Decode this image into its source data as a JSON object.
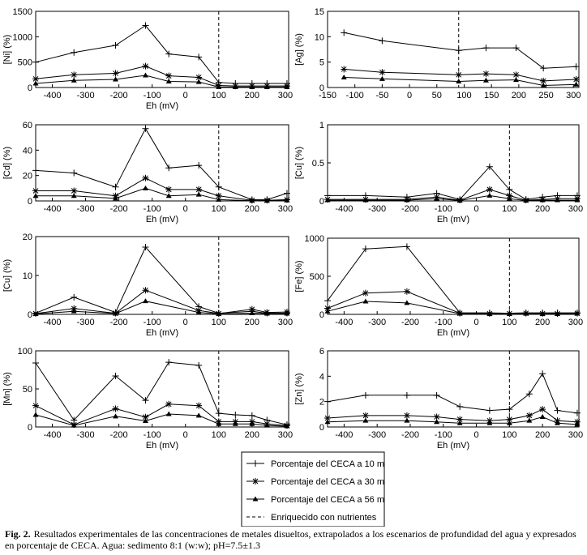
{
  "chart_data": [
    {
      "id": "ni",
      "type": "line",
      "ylabel": "[Ni] (%)",
      "xlabel": "Eh (mV)",
      "xlim": [
        -450,
        310
      ],
      "ylim": [
        0,
        1500
      ],
      "yticks": [
        0,
        500,
        1000,
        1500
      ],
      "xticks": [
        -400,
        -300,
        -200,
        -100,
        0,
        100,
        200,
        300
      ],
      "vline": 100,
      "series": [
        {
          "name": "10m",
          "x": [
            -450,
            -335,
            -210,
            -120,
            -50,
            40,
            100,
            150,
            200,
            245,
            305
          ],
          "y": [
            500,
            690,
            830,
            1220,
            660,
            600,
            100,
            80,
            80,
            80,
            80
          ]
        },
        {
          "name": "30m",
          "x": [
            -450,
            -335,
            -210,
            -120,
            -50,
            40,
            100,
            150,
            200,
            245,
            305
          ],
          "y": [
            170,
            250,
            280,
            420,
            230,
            200,
            40,
            30,
            30,
            30,
            30
          ]
        },
        {
          "name": "56m",
          "x": [
            -450,
            -335,
            -210,
            -120,
            -50,
            40,
            100,
            150,
            200,
            245,
            305
          ],
          "y": [
            80,
            140,
            160,
            240,
            120,
            110,
            10,
            10,
            10,
            10,
            10
          ]
        }
      ]
    },
    {
      "id": "ag",
      "type": "line",
      "ylabel": "[Ag] (%)",
      "xlabel": "",
      "xlim": [
        -150,
        310
      ],
      "ylim": [
        0,
        15
      ],
      "yticks": [
        0,
        5,
        10,
        15
      ],
      "xticks": [
        -150,
        -100,
        -50,
        0,
        50,
        100,
        150,
        200,
        250,
        300
      ],
      "vline": 90,
      "series": [
        {
          "name": "10m",
          "x": [
            -120,
            -50,
            90,
            140,
            195,
            245,
            305
          ],
          "y": [
            10.8,
            9.2,
            7.3,
            7.8,
            7.8,
            3.8,
            4.1
          ]
        },
        {
          "name": "30m",
          "x": [
            -120,
            -50,
            90,
            140,
            195,
            245,
            305
          ],
          "y": [
            3.6,
            3.0,
            2.5,
            2.7,
            2.5,
            1.3,
            1.6
          ]
        },
        {
          "name": "56m",
          "x": [
            -120,
            -50,
            90,
            140,
            195,
            245,
            305
          ],
          "y": [
            2.0,
            1.7,
            1.2,
            1.4,
            1.5,
            0.4,
            0.6
          ]
        }
      ]
    },
    {
      "id": "cd",
      "type": "line",
      "ylabel": "[Cd] (%)",
      "xlabel": "Eh (mV)",
      "xlim": [
        -450,
        310
      ],
      "ylim": [
        0,
        60
      ],
      "yticks": [
        0,
        20,
        40,
        60
      ],
      "xticks": [
        -400,
        -300,
        -200,
        -100,
        0,
        100,
        200,
        300
      ],
      "vline": 100,
      "series": [
        {
          "name": "10m",
          "x": [
            -450,
            -335,
            -210,
            -120,
            -50,
            40,
            100,
            200,
            245,
            305
          ],
          "y": [
            24,
            22,
            11,
            57,
            26,
            28,
            11,
            1,
            1,
            6
          ]
        },
        {
          "name": "30m",
          "x": [
            -450,
            -335,
            -210,
            -120,
            -50,
            40,
            100,
            200,
            245,
            305
          ],
          "y": [
            8,
            8,
            4,
            18,
            9,
            9,
            4,
            0.5,
            0.5,
            1
          ]
        },
        {
          "name": "56m",
          "x": [
            -450,
            -335,
            -210,
            -120,
            -50,
            40,
            100,
            200,
            245,
            305
          ],
          "y": [
            4,
            4,
            2,
            10,
            4,
            5,
            1,
            0.2,
            0.2,
            0.5
          ]
        }
      ]
    },
    {
      "id": "cu1",
      "type": "line",
      "ylabel": "[Cu] (%)",
      "xlabel": "Eh (mV)",
      "xlim": [
        -450,
        310
      ],
      "ylim": [
        0,
        1
      ],
      "yticks": [
        0,
        0.5,
        1
      ],
      "ytick_labels": [
        "0",
        "0.5",
        "1"
      ],
      "xticks": [
        -400,
        -300,
        -200,
        -100,
        0,
        100,
        200,
        300
      ],
      "vline": 100,
      "series": [
        {
          "name": "10m",
          "x": [
            -450,
            -335,
            -210,
            -120,
            -50,
            40,
            100,
            150,
            200,
            245,
            305
          ],
          "y": [
            0.07,
            0.07,
            0.05,
            0.1,
            0.02,
            0.45,
            0.15,
            0.02,
            0.05,
            0.07,
            0.07
          ]
        },
        {
          "name": "30m",
          "x": [
            -450,
            -335,
            -210,
            -120,
            -50,
            40,
            100,
            150,
            200,
            245,
            305
          ],
          "y": [
            0.02,
            0.02,
            0.02,
            0.05,
            0.01,
            0.15,
            0.07,
            0.01,
            0.02,
            0.03,
            0.03
          ]
        },
        {
          "name": "56m",
          "x": [
            -450,
            -335,
            -210,
            -120,
            -50,
            40,
            100,
            150,
            200,
            245,
            305
          ],
          "y": [
            0.01,
            0.01,
            0.01,
            0.03,
            0.005,
            0.07,
            0.03,
            0.005,
            0.01,
            0.01,
            0.01
          ]
        }
      ]
    },
    {
      "id": "cu2",
      "type": "line",
      "ylabel": "[Cu] (%)",
      "xlabel": "Eh (mV)",
      "xlim": [
        -450,
        310
      ],
      "ylim": [
        0,
        20
      ],
      "yticks": [
        0,
        10,
        20
      ],
      "xticks": [
        -400,
        -300,
        -200,
        -100,
        0,
        100,
        200,
        300
      ],
      "vline": 100,
      "series": [
        {
          "name": "10m",
          "x": [
            -450,
            -335,
            -210,
            -120,
            40,
            100,
            200,
            245,
            305
          ],
          "y": [
            0.3,
            4.4,
            0.5,
            17.3,
            2.0,
            0.3,
            0.8,
            0.3,
            0.3
          ]
        },
        {
          "name": "30m",
          "x": [
            -450,
            -335,
            -210,
            -120,
            40,
            100,
            200,
            245,
            305
          ],
          "y": [
            0.2,
            1.5,
            0.3,
            6.2,
            1.0,
            0.2,
            1.3,
            0.5,
            0.6
          ]
        },
        {
          "name": "56m",
          "x": [
            -450,
            -335,
            -210,
            -120,
            40,
            100,
            200,
            245,
            305
          ],
          "y": [
            0.1,
            0.8,
            0.2,
            3.4,
            0.5,
            0.1,
            0.3,
            0.2,
            0.2
          ]
        }
      ]
    },
    {
      "id": "fe",
      "type": "line",
      "ylabel": "[Fe] (%)",
      "xlabel": "Eh (mV)",
      "xlim": [
        -450,
        310
      ],
      "ylim": [
        0,
        1000
      ],
      "yticks": [
        0,
        500,
        1000
      ],
      "xticks": [
        -400,
        -300,
        -200,
        -100,
        0,
        100,
        200,
        300
      ],
      "vline": 100,
      "series": [
        {
          "name": "10m",
          "x": [
            -450,
            -335,
            -210,
            -50,
            40,
            100,
            150,
            200,
            245,
            305
          ],
          "y": [
            180,
            860,
            890,
            20,
            20,
            15,
            20,
            20,
            20,
            20
          ]
        },
        {
          "name": "30m",
          "x": [
            -450,
            -335,
            -210,
            -50,
            40,
            100,
            150,
            200,
            245,
            305
          ],
          "y": [
            80,
            280,
            300,
            15,
            10,
            10,
            15,
            10,
            10,
            15
          ]
        },
        {
          "name": "56m",
          "x": [
            -450,
            -335,
            -210,
            -50,
            40,
            100,
            150,
            200,
            245,
            305
          ],
          "y": [
            40,
            170,
            150,
            10,
            5,
            5,
            10,
            5,
            5,
            10
          ]
        }
      ]
    },
    {
      "id": "mn",
      "type": "line",
      "ylabel": "[Mn] (%)",
      "xlabel": "Eh (mV)",
      "xlim": [
        -450,
        310
      ],
      "ylim": [
        0,
        100
      ],
      "yticks": [
        0,
        50,
        100
      ],
      "xticks": [
        -400,
        -300,
        -200,
        -100,
        0,
        100,
        200,
        300
      ],
      "vline": 100,
      "series": [
        {
          "name": "10m",
          "x": [
            -450,
            -335,
            -210,
            -120,
            -50,
            40,
            100,
            150,
            200,
            245,
            305
          ],
          "y": [
            84,
            9,
            67,
            35,
            85,
            81,
            18,
            16,
            15,
            9,
            3
          ]
        },
        {
          "name": "30m",
          "x": [
            -450,
            -335,
            -210,
            -120,
            -50,
            40,
            100,
            150,
            200,
            245,
            305
          ],
          "y": [
            28,
            3,
            24,
            13,
            30,
            28,
            7,
            7,
            7,
            4,
            2
          ]
        },
        {
          "name": "56m",
          "x": [
            -450,
            -335,
            -210,
            -120,
            -50,
            40,
            100,
            150,
            200,
            245,
            305
          ],
          "y": [
            16,
            2,
            14,
            8,
            17,
            15,
            4,
            4,
            4,
            2,
            1
          ]
        }
      ]
    },
    {
      "id": "zn",
      "type": "line",
      "ylabel": "[Zn] (%)",
      "xlabel": "Eh (mV)",
      "xlim": [
        -450,
        310
      ],
      "ylim": [
        0,
        6
      ],
      "yticks": [
        0,
        2,
        4,
        6
      ],
      "xticks": [
        -400,
        -300,
        -200,
        -100,
        0,
        100,
        200,
        300
      ],
      "vline": 100,
      "series": [
        {
          "name": "10m",
          "x": [
            -450,
            -335,
            -210,
            -120,
            -50,
            40,
            100,
            160,
            200,
            245,
            305
          ],
          "y": [
            2.0,
            2.5,
            2.5,
            2.5,
            1.6,
            1.3,
            1.4,
            2.6,
            4.2,
            1.3,
            1.1
          ]
        },
        {
          "name": "30m",
          "x": [
            -450,
            -335,
            -210,
            -120,
            -50,
            40,
            100,
            160,
            200,
            245,
            305
          ],
          "y": [
            0.7,
            0.9,
            0.9,
            0.8,
            0.6,
            0.5,
            0.6,
            0.9,
            1.4,
            0.5,
            0.4
          ]
        },
        {
          "name": "56m",
          "x": [
            -450,
            -335,
            -210,
            -120,
            -50,
            40,
            100,
            160,
            200,
            245,
            305
          ],
          "y": [
            0.4,
            0.5,
            0.5,
            0.4,
            0.3,
            0.3,
            0.3,
            0.5,
            0.8,
            0.3,
            0.2
          ]
        }
      ]
    }
  ],
  "legend": {
    "items": [
      {
        "key": "10m",
        "marker": "plus",
        "label": "Porcentaje del CECA a 10 m"
      },
      {
        "key": "30m",
        "marker": "star",
        "label": "Porcentaje del CECA a 30 m"
      },
      {
        "key": "56m",
        "marker": "triangle",
        "label": "Porcentaje del CECA a 56 m"
      },
      {
        "key": "dash",
        "marker": "dashed",
        "label": "Enriquecido con nutrientes"
      }
    ]
  },
  "caption": {
    "label": "Fig. 2.",
    "text": "Resultados experimentales de las concentraciones de metales disueltos, extrapolados a los escenarios de profundidad del agua y expresados en porcentaje de CECA. Agua: sedimento 8:1 (w:w); pH=7.5±1.3"
  }
}
